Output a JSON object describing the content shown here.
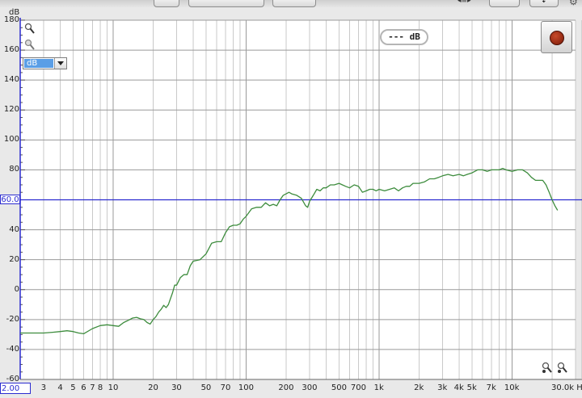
{
  "toolbar": {
    "arrows_glyph": "◂≡▸",
    "down_glyph": "⇣",
    "gear_glyph": "⚙"
  },
  "plot": {
    "y_title": "dB",
    "unit_selected": "dB",
    "readout": "--- dB",
    "reference_level": "60.0",
    "x_min": "2.00",
    "y_ticks": [
      "180",
      "160",
      "140",
      "120",
      "100",
      "80",
      "60",
      "40",
      "20",
      "0",
      "-20",
      "-40",
      "-60"
    ],
    "x_tick_labels": [
      {
        "f": 3,
        "t": "3"
      },
      {
        "f": 4,
        "t": "4"
      },
      {
        "f": 5,
        "t": "5"
      },
      {
        "f": 6,
        "t": "6"
      },
      {
        "f": 7,
        "t": "7"
      },
      {
        "f": 8,
        "t": "8"
      },
      {
        "f": 10,
        "t": "10"
      },
      {
        "f": 20,
        "t": "20"
      },
      {
        "f": 30,
        "t": "30"
      },
      {
        "f": 50,
        "t": "50"
      },
      {
        "f": 70,
        "t": "70"
      },
      {
        "f": 100,
        "t": "100"
      },
      {
        "f": 200,
        "t": "200"
      },
      {
        "f": 300,
        "t": "300"
      },
      {
        "f": 500,
        "t": "500"
      },
      {
        "f": 700,
        "t": "700"
      },
      {
        "f": 1000,
        "t": "1k"
      },
      {
        "f": 2000,
        "t": "2k"
      },
      {
        "f": 3000,
        "t": "3k"
      },
      {
        "f": 4000,
        "t": "4k"
      },
      {
        "f": 5000,
        "t": "5k"
      },
      {
        "f": 7000,
        "t": "7k"
      },
      {
        "f": 10000,
        "t": "10k"
      },
      {
        "f": 30000,
        "t": "30.0k Hz"
      }
    ],
    "colors": {
      "curve": "#3d8c3d",
      "reference_line": "#2b2bd0",
      "grid_major": "#9a9a9a",
      "grid_minor": "#c9c9c9",
      "background": "#ffffff"
    }
  },
  "chart_data": {
    "type": "line",
    "x_scale": "log",
    "xlim": [
      2,
      30000
    ],
    "ylim": [
      -60,
      180
    ],
    "xlabel": "Hz",
    "ylabel": "dB",
    "grid": true,
    "reference_line": 60,
    "series": [
      {
        "name": "",
        "x": [
          2,
          2.5,
          3,
          3.5,
          4,
          4.5,
          5,
          5.5,
          6,
          7,
          8,
          9,
          10,
          11,
          12,
          13,
          14,
          15,
          16,
          17,
          18,
          19,
          20,
          21,
          22,
          23,
          24,
          25,
          26,
          27,
          28,
          29,
          30,
          32,
          34,
          36,
          38,
          40,
          45,
          50,
          55,
          60,
          65,
          70,
          75,
          80,
          85,
          90,
          95,
          100,
          110,
          120,
          130,
          140,
          150,
          160,
          170,
          180,
          190,
          200,
          210,
          220,
          240,
          260,
          280,
          290,
          300,
          320,
          340,
          360,
          380,
          400,
          430,
          460,
          500,
          530,
          560,
          600,
          650,
          700,
          750,
          800,
          850,
          900,
          950,
          1000,
          1100,
          1200,
          1300,
          1400,
          1500,
          1600,
          1700,
          1800,
          2000,
          2200,
          2400,
          2600,
          2800,
          3000,
          3300,
          3600,
          4000,
          4300,
          4600,
          5000,
          5500,
          6000,
          6500,
          7000,
          7500,
          8000,
          8500,
          9000,
          10000,
          11000,
          12000,
          13000,
          14000,
          15000,
          16000,
          17000,
          18000,
          19000,
          20000,
          21000,
          22000
        ],
        "y": [
          -29,
          -29,
          -29,
          -28.5,
          -28,
          -27.5,
          -28,
          -29,
          -29.5,
          -26,
          -24,
          -23.5,
          -24,
          -24.5,
          -22,
          -20.5,
          -19,
          -18.5,
          -19.5,
          -20,
          -22,
          -23,
          -20,
          -18,
          -15,
          -13,
          -10.5,
          -12,
          -10,
          -6,
          -2,
          3,
          3,
          8,
          10,
          10,
          16,
          19,
          20,
          24,
          31,
          32,
          32,
          38,
          42,
          43,
          43,
          44,
          47,
          49,
          54,
          55,
          55,
          58,
          56,
          57,
          56,
          60,
          63,
          64,
          65,
          64,
          63,
          61,
          56,
          55,
          59,
          63,
          67,
          66,
          68,
          68,
          70,
          70,
          71,
          70,
          69,
          68,
          70,
          69,
          65,
          66,
          67,
          67,
          66,
          67,
          66,
          67,
          68,
          66,
          68,
          69,
          69,
          71,
          71,
          72,
          74,
          74,
          75,
          76,
          77,
          76,
          77,
          76,
          77,
          78,
          80,
          80,
          79,
          80,
          80,
          80,
          81,
          80,
          79,
          80,
          80,
          78,
          75,
          73,
          73,
          73,
          70,
          65,
          60,
          56,
          53
        ]
      }
    ]
  }
}
